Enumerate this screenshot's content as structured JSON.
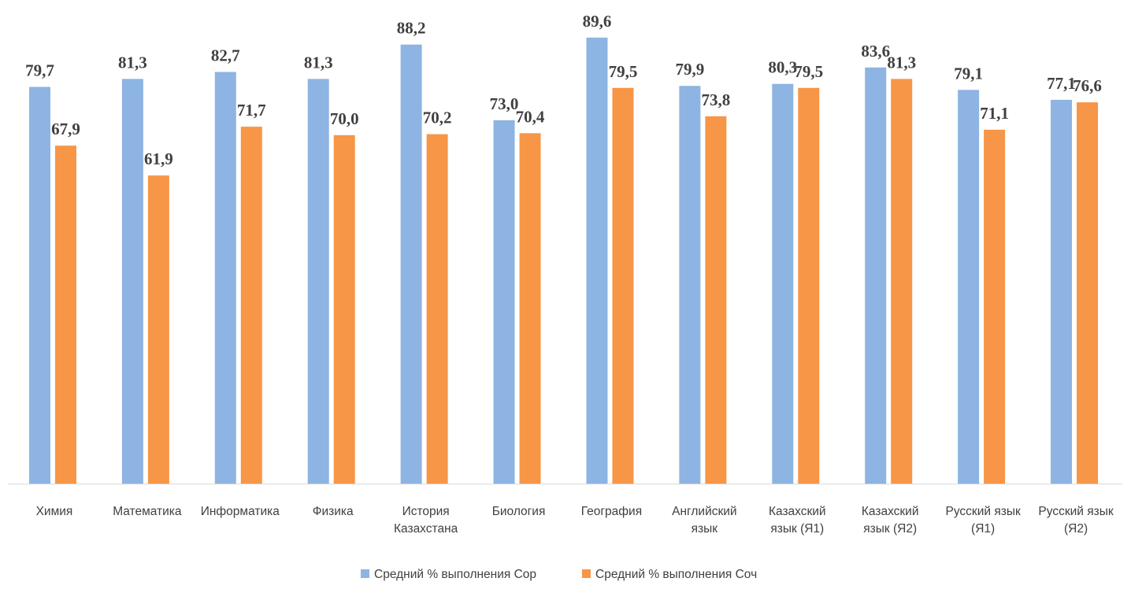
{
  "chart_data": {
    "type": "bar",
    "title": "",
    "xlabel": "",
    "ylabel": "",
    "ylim": [
      0,
      92
    ],
    "grid": false,
    "legend_position": "bottom",
    "categories": [
      [
        "Химия"
      ],
      [
        "Математика"
      ],
      [
        "Информатика"
      ],
      [
        "Физика"
      ],
      [
        "История",
        "Казахстана"
      ],
      [
        "Биология"
      ],
      [
        "География"
      ],
      [
        "Английский",
        "язык"
      ],
      [
        "Казахский",
        "язык (Я1)"
      ],
      [
        "Казахский",
        "язык (Я2)"
      ],
      [
        "Русский язык",
        "(Я1)"
      ],
      [
        "Русский язык",
        "(Я2)"
      ]
    ],
    "series": [
      {
        "name": "Средний % выполнения Сор",
        "color": "#8DB4E2",
        "values": [
          79.7,
          81.3,
          82.7,
          81.3,
          88.2,
          73.0,
          89.6,
          79.9,
          80.3,
          83.6,
          79.1,
          77.1
        ],
        "labels": [
          "79,7",
          "81,3",
          "82,7",
          "81,3",
          "88,2",
          "73,0",
          "89,6",
          "79,9",
          "80,3",
          "83,6",
          "79,1",
          "77,1"
        ]
      },
      {
        "name": "Средний % выполнения Соч",
        "color": "#F79646",
        "values": [
          67.9,
          61.9,
          71.7,
          70.0,
          70.2,
          70.4,
          79.5,
          73.8,
          79.5,
          81.3,
          71.1,
          76.6
        ],
        "labels": [
          "67,9",
          "61,9",
          "71,7",
          "70,0",
          "70,2",
          "70,4",
          "79,5",
          "73,8",
          "79,5",
          "81,3",
          "71,1",
          "76,6"
        ]
      }
    ]
  }
}
